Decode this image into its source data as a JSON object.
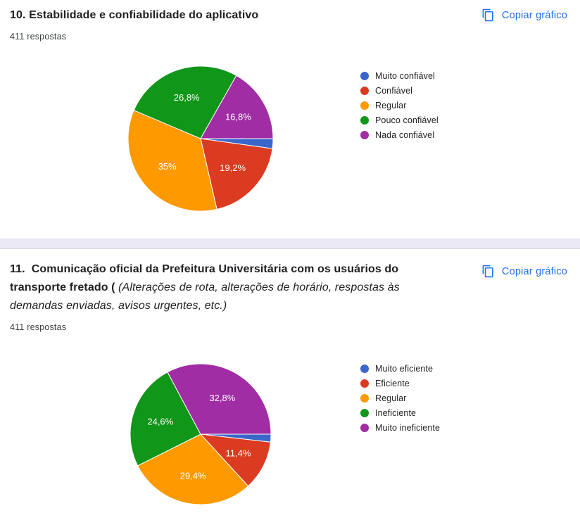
{
  "colors": {
    "link_accent": "#1a73e8",
    "divider_band": "#eae9f5",
    "slice_label_text": "#ffffff"
  },
  "sections": [
    {
      "title_main": "10. Estabilidade e confiabilidade do aplicativo",
      "title_note": "",
      "responses_count": "411 respostas",
      "copy_button_label": "Copiar gráfico"
    },
    {
      "title_main": "11.  Comunicação oficial da Prefeitura Universitária com os usuários do transporte fretado ( ",
      "title_note": "(Alterações de rota, alterações de horário, respostas às demandas enviadas, avisos urgentes, etc.)",
      "responses_count": "411 respostas",
      "copy_button_label": "Copiar gráfico"
    }
  ],
  "chart_data": [
    {
      "type": "pie",
      "title": "10. Estabilidade e confiabilidade do aplicativo",
      "subtitle": "411 respostas",
      "categories": [
        "Muito confiável",
        "Confiável",
        "Regular",
        "Pouco confiável",
        "Nada confiável"
      ],
      "values": [
        2.2,
        19.2,
        35.0,
        26.8,
        16.8
      ],
      "slice_labels": [
        "",
        "19,2%",
        "35%",
        "26,8%",
        "16,8%"
      ],
      "colors": [
        "#3b66c9",
        "#da3b21",
        "#ff9900",
        "#109618",
        "#a02da4"
      ],
      "legend_position": "right",
      "start_angle_deg": 90,
      "direction": "clockwise",
      "label_radius_ratio": 0.6
    },
    {
      "type": "pie",
      "title": "11. Comunicação oficial da Prefeitura Universitária com os usuários do transporte fretado",
      "subtitle": "411 respostas",
      "categories": [
        "Muito eficiente",
        "Eficiente",
        "Regular",
        "Ineficiente",
        "Muito ineficiente"
      ],
      "values": [
        1.8,
        11.4,
        29.4,
        24.6,
        32.8
      ],
      "slice_labels": [
        "",
        "11,4%",
        "29,4%",
        "24,6%",
        "32,8%"
      ],
      "colors": [
        "#3b66c9",
        "#da3b21",
        "#ff9900",
        "#109618",
        "#a02da4"
      ],
      "legend_position": "right",
      "start_angle_deg": 90,
      "direction": "clockwise",
      "label_radius_ratio": 0.6
    }
  ]
}
